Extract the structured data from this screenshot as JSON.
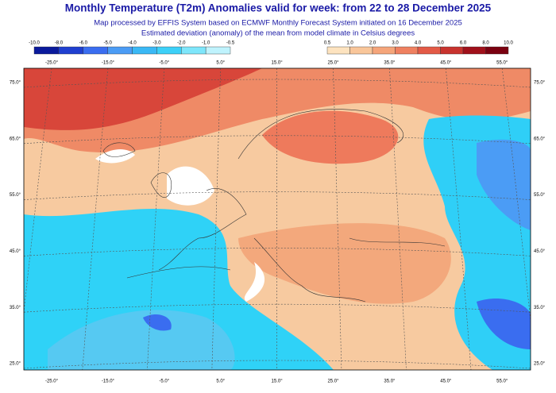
{
  "title": "Monthly Temperature (T2m) Anomalies valid for week: from 22 to 28 December 2025",
  "subtitle": [
    "Map processed by EFFIS System based on ECMWF Monthly Forecast System initiated on 16 December 2025",
    "Estimated deviation (anomaly) of the mean from model climate in Celsius degrees"
  ],
  "legend_cold": {
    "labels": [
      "-10.0",
      "-8.0",
      "-6.0",
      "-5.0",
      "-4.0",
      "-3.0",
      "-2.0",
      "-1.0",
      "-0.5"
    ],
    "colors": [
      "#0a1a9c",
      "#1f3fd0",
      "#3a6df0",
      "#4b9cf5",
      "#3ab8f5",
      "#3cd0f8",
      "#7ee6fb",
      "#bff3fd"
    ]
  },
  "legend_warm": {
    "labels": [
      "0.5",
      "1.0",
      "2.0",
      "3.0",
      "4.0",
      "5.0",
      "6.0",
      "8.0",
      "10.0"
    ],
    "colors": [
      "#fde3bf",
      "#f9c69a",
      "#f5a57a",
      "#ef8060",
      "#e35a46",
      "#c8332e",
      "#a0101a",
      "#7a0010"
    ]
  },
  "lon_labels": [
    "-25.0°",
    "-15.0°",
    "-5.0°",
    "5.0°",
    "15.0°",
    "25.0°",
    "35.0°",
    "45.0°",
    "55.0°"
  ],
  "lat_labels": [
    "75.0°",
    "65.0°",
    "55.0°",
    "45.0°",
    "35.0°",
    "25.0°"
  ]
}
